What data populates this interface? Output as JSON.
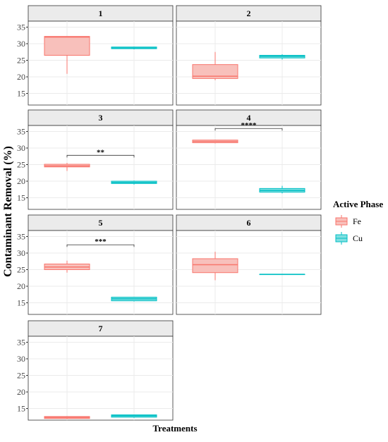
{
  "chart_data": {
    "type": "box",
    "y_label": "Contaminant Removal (%)",
    "x_label": "Treatments",
    "legend_title": "Active Phase",
    "ylim": [
      11.5,
      36.8
    ],
    "yticks": [
      15,
      20,
      25,
      30,
      35
    ],
    "grid": true,
    "series": [
      {
        "name": "Fe",
        "color": "#f8766d",
        "fill": "#f8c0bb"
      },
      {
        "name": "Cu",
        "color": "#00bfc4",
        "fill": "#7fdfe1"
      }
    ],
    "panels": [
      {
        "title": "1",
        "boxes": [
          {
            "min": 20.9,
            "q1": 26.5,
            "median": 32,
            "q3": 32.2,
            "max": 32.2
          },
          {
            "min": 28.3,
            "q1": 28.5,
            "median": 28.7,
            "q3": 29,
            "max": 29.1
          }
        ]
      },
      {
        "title": "2",
        "boxes": [
          {
            "min": 19,
            "q1": 19.5,
            "median": 20.2,
            "q3": 23.7,
            "max": 27.5
          },
          {
            "min": 25.2,
            "q1": 25.7,
            "median": 26.2,
            "q3": 26.5,
            "max": 26.8
          }
        ]
      },
      {
        "title": "3",
        "boxes": [
          {
            "min": 23.1,
            "q1": 24.3,
            "median": 24.6,
            "q3": 25.1,
            "max": 25.5
          },
          {
            "min": 19,
            "q1": 19.3,
            "median": 19.6,
            "q3": 20,
            "max": 20.2
          }
        ],
        "significance": "**",
        "bracket_y": 27.8
      },
      {
        "title": "4",
        "boxes": [
          {
            "min": 31.4,
            "q1": 31.6,
            "median": 32,
            "q3": 32.4,
            "max": 32.5
          },
          {
            "min": 16.3,
            "q1": 16.7,
            "median": 17.2,
            "q3": 17.8,
            "max": 18.6
          }
        ],
        "significance": "****",
        "bracket_y": 35.9
      },
      {
        "title": "5",
        "boxes": [
          {
            "min": 24.1,
            "q1": 25,
            "median": 25.8,
            "q3": 26.7,
            "max": 27.7
          },
          {
            "min": 15.4,
            "q1": 15.6,
            "median": 16.2,
            "q3": 16.7,
            "max": 16.8
          }
        ],
        "significance": "***",
        "bracket_y": 32.5
      },
      {
        "title": "6",
        "boxes": [
          {
            "min": 21.8,
            "q1": 24.1,
            "median": 26.5,
            "q3": 28.3,
            "max": 30.4
          },
          {
            "min": 23.6,
            "q1": 23.6,
            "median": 23.6,
            "q3": 23.6,
            "max": 23.6
          }
        ]
      },
      {
        "title": "7",
        "boxes": [
          {
            "min": 11.8,
            "q1": 12,
            "median": 12.3,
            "q3": 12.6,
            "max": 12.7
          },
          {
            "min": 12.2,
            "q1": 12.4,
            "median": 12.8,
            "q3": 13.1,
            "max": 13.2
          }
        ]
      }
    ]
  }
}
